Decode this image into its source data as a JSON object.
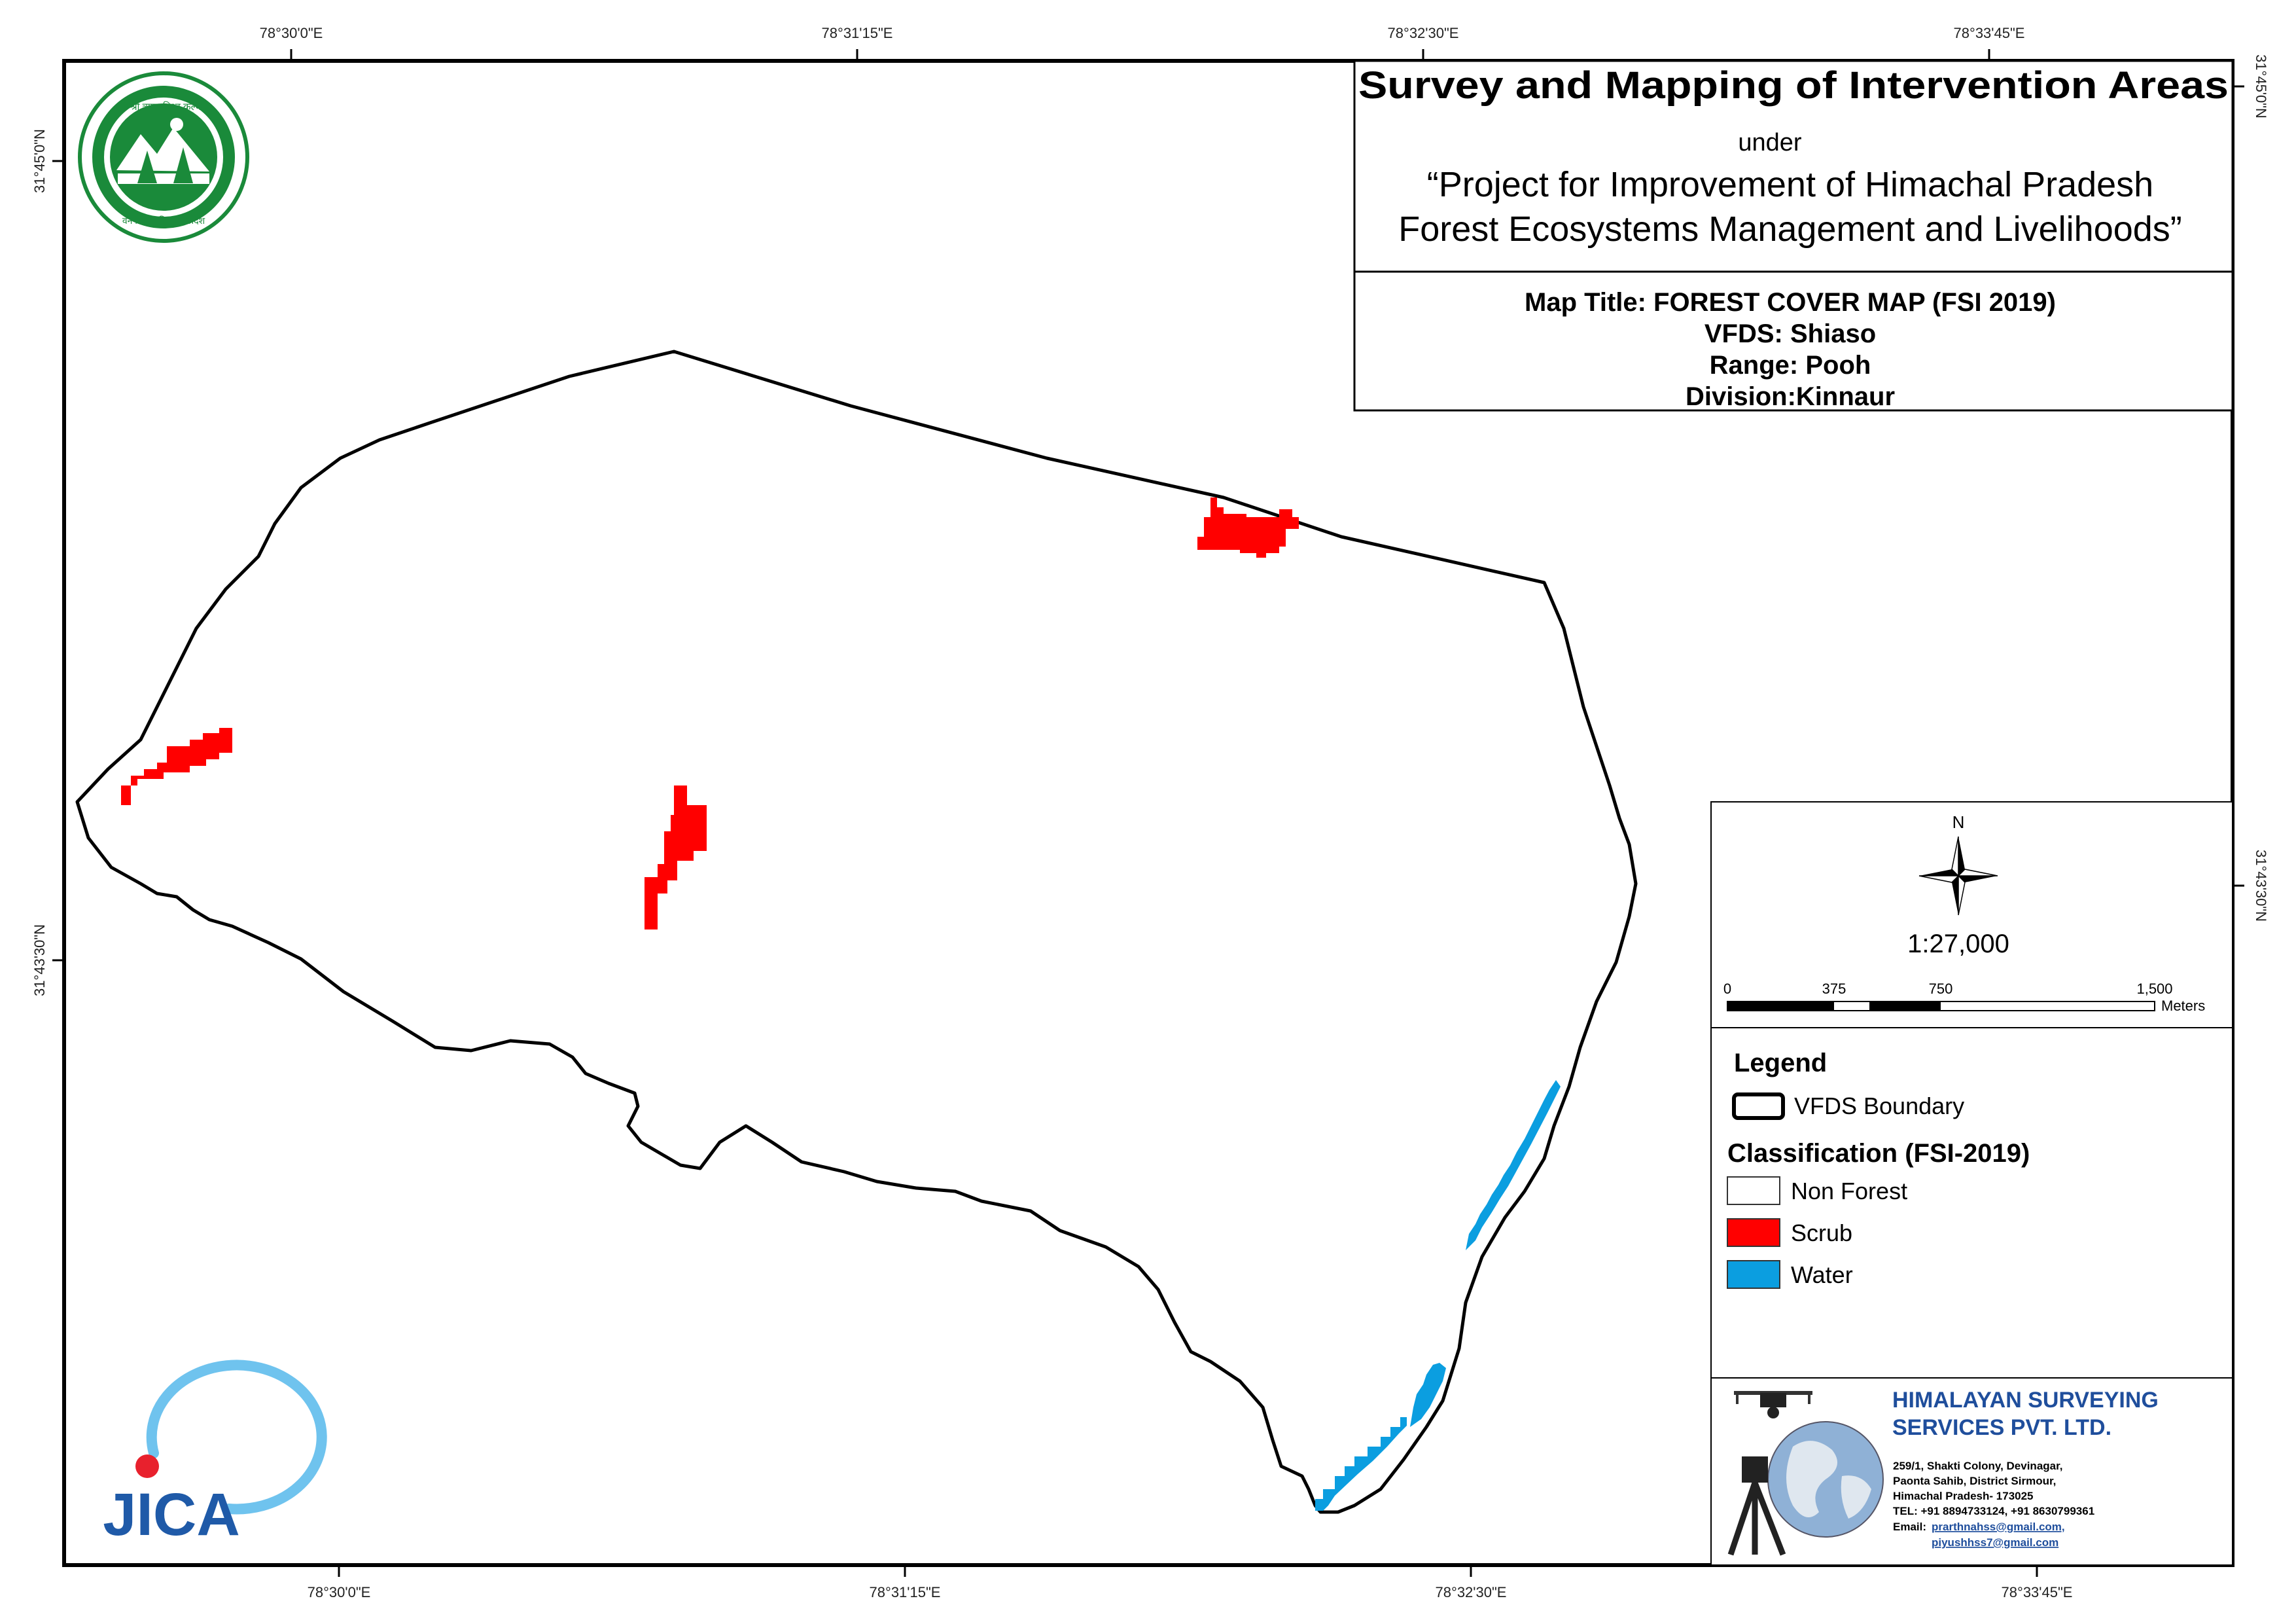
{
  "header": {
    "title": "Survey and Mapping of Intervention Areas",
    "under": "under",
    "project_line1": "“Project for Improvement of Himachal Pradesh",
    "project_line2": "Forest Ecosystems Management and Livelihoods”"
  },
  "map_info": {
    "title": "Map Title: FOREST COVER MAP (FSI 2019)",
    "vfds": "VFDS: Shiaso",
    "range": "Range: Pooh",
    "division": "Division:Kinnaur"
  },
  "graticule": {
    "top_lon": [
      "78°30'0\"E",
      "78°31'15\"E",
      "78°32'30\"E",
      "78°33'45\"E"
    ],
    "bottom_lon": [
      "78°30'0\"E",
      "78°31'15\"E",
      "78°32'30\"E",
      "78°33'45\"E"
    ],
    "left_lat": [
      "31°45'0\"N",
      "31°43'30\"N"
    ],
    "right_lat": [
      "31°45'0\"N",
      "31°43'30\"N"
    ]
  },
  "north_arrow": {
    "label": "N",
    "icon": "compass-rose-icon"
  },
  "scale": {
    "ratio": "1:27,000",
    "ticks": [
      "0",
      "375",
      "750",
      "1,500"
    ],
    "unit": "Meters"
  },
  "legend": {
    "heading": "Legend",
    "boundary_label": "VFDS Boundary",
    "classification_heading": "Classification (FSI-2019)",
    "classes": [
      {
        "label": "Non Forest",
        "color": "#ffffff"
      },
      {
        "label": "Scrub",
        "color": "#ff0000"
      },
      {
        "label": "Water",
        "color": "#0b9ee0"
      }
    ]
  },
  "company": {
    "name_line1": "HIMALAYAN SURVEYING",
    "name_line2": "SERVICES PVT. LTD.",
    "address1": "259/1, Shakti Colony, Devinagar,",
    "address2": "Paonta Sahib, District Sirmour,",
    "address3": "Himachal Pradesh- 173025",
    "tel": "TEL: +91 8894733124, +91 8630799361",
    "email_label": "Email: ",
    "email1": "prarthnahss@gmail.com,",
    "email2": "piyushhss7@gmail.com"
  },
  "logos": {
    "forest_dept_text_top": "वन श्री त्राण, विश्व कल्याण",
    "forest_dept_text_bottom": "वन विभाग हिमाचल प्रदेश",
    "jica": "JICA"
  },
  "colors": {
    "scrub": "#ff0000",
    "water": "#0b9ee0",
    "boundary": "#000000",
    "logo_green": "#1a8a3a",
    "jica_blue": "#1f5aa8",
    "company_blue": "#1f4e9c"
  }
}
